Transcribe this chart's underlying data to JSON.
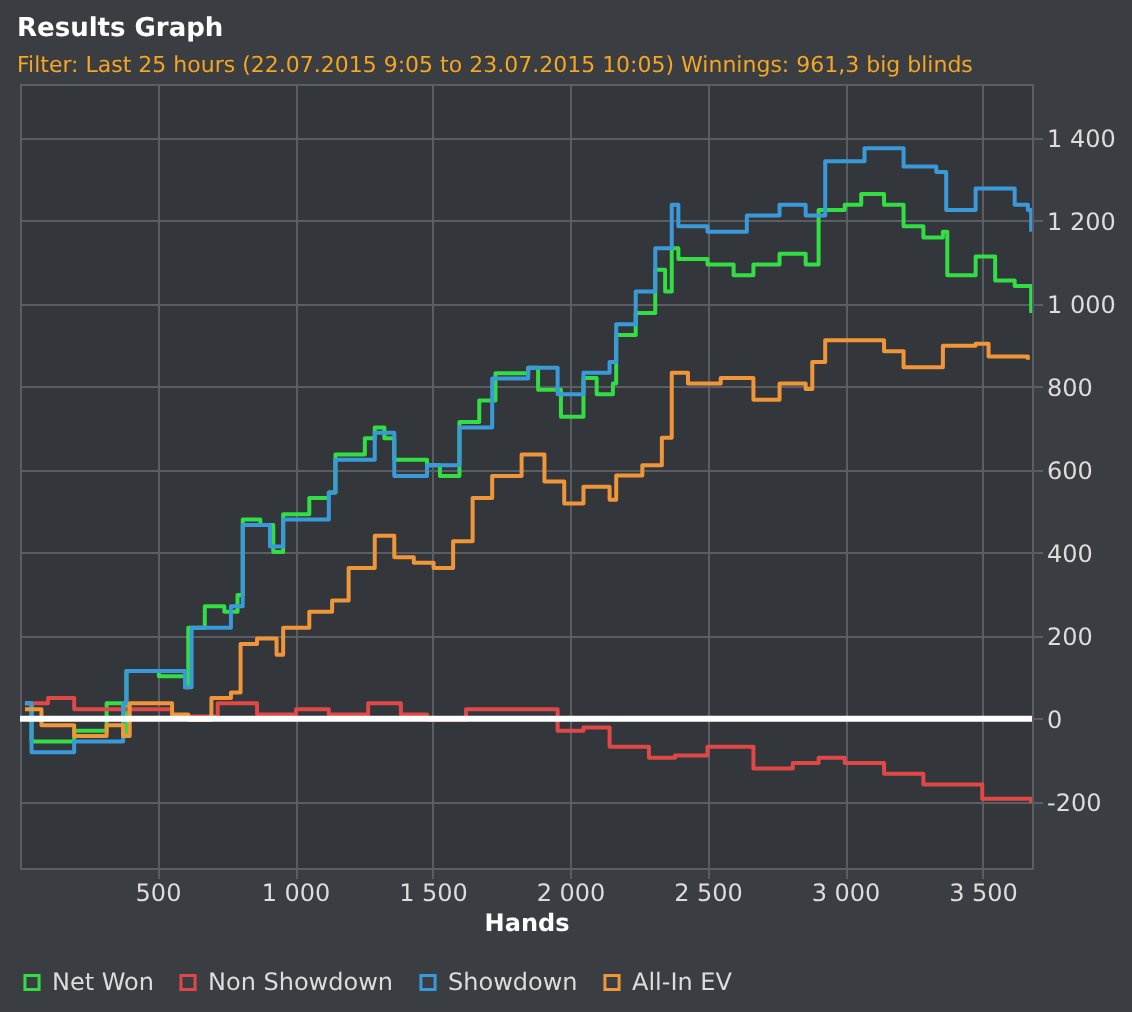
{
  "chart_data": {
    "type": "step",
    "title": "Results Graph",
    "subtitle": "Filter: Last 25 hours (22.07.2015 9:05 to 23.07.2015 10:05) Winnings: 961,3 big blinds",
    "xlabel": "Hands",
    "xlim": [
      0,
      3680
    ],
    "ylim": [
      -360,
      1530
    ],
    "xticks": [
      500,
      {
        "value": 1000,
        "label": "1 000"
      },
      {
        "value": 1500,
        "label": "1 500"
      },
      {
        "value": 2000,
        "label": "2 000"
      },
      {
        "value": 2500,
        "label": "2 500"
      },
      {
        "value": 3000,
        "label": "3 000"
      },
      {
        "value": 3500,
        "label": "3 500"
      }
    ],
    "yticks": [
      -200,
      0,
      200,
      400,
      600,
      800,
      {
        "value": 1000,
        "label": "1 000"
      },
      {
        "value": 1200,
        "label": "1 200"
      },
      {
        "value": 1400,
        "label": "1 400"
      }
    ],
    "grid": true,
    "legend": "bottom",
    "ref_lines": [
      {
        "axis": "y",
        "value": 0,
        "color": "#ffffff"
      }
    ],
    "series": [
      {
        "name": "Net Won",
        "color": "#33dd44",
        "x": [
          18,
          42,
          197,
          315,
          375,
          387,
          505,
          600,
          612,
          672,
          743,
          791,
          810,
          874,
          921,
          957,
          1052,
          1123,
          1147,
          1254,
          1290,
          1325,
          1361,
          1480,
          1527,
          1598,
          1670,
          1729,
          1812,
          1848,
          1884,
          1967,
          2049,
          2097,
          2156,
          2168,
          2239,
          2310,
          2346,
          2370,
          2394,
          2500,
          2595,
          2667,
          2762,
          2857,
          2904,
          2999,
          3059,
          3142,
          3213,
          3285,
          3356,
          3372,
          3427,
          3475,
          3546,
          3617,
          3665,
          3677
        ],
        "values": [
          37,
          -55,
          -29,
          37,
          -42,
          115,
          102,
          76,
          219,
          271,
          258,
          298,
          480,
          467,
          402,
          493,
          532,
          545,
          637,
          676,
          702,
          676,
          624,
          611,
          585,
          715,
          767,
          833,
          833,
          846,
          793,
          728,
          821,
          782,
          808,
          925,
          978,
          1082,
          1030,
          1134,
          1108,
          1095,
          1069,
          1095,
          1121,
          1095,
          1226,
          1239,
          1265,
          1239,
          1187,
          1160,
          1174,
          1069,
          1069,
          1114,
          1056,
          1043,
          1043,
          978
        ]
      },
      {
        "name": "Non Showdown",
        "color": "#e04848",
        "x": [
          18,
          102,
          197,
          375,
          553,
          719,
          862,
          1004,
          1123,
          1266,
          1385,
          1480,
          1622,
          1765,
          1860,
          1955,
          2049,
          2144,
          2287,
          2382,
          2500,
          2667,
          2810,
          2904,
          2999,
          3142,
          3285,
          3380,
          3499,
          3617,
          3677
        ],
        "values": [
          37,
          50,
          23,
          23,
          5,
          37,
          10,
          23,
          10,
          37,
          10,
          -3,
          23,
          23,
          23,
          -29,
          -21,
          -68,
          -94,
          -89,
          -68,
          -120,
          -107,
          -94,
          -107,
          -133,
          -159,
          -159,
          -193,
          -193,
          -204
        ]
      },
      {
        "name": "Showdown",
        "color": "#3a9ad9",
        "x": [
          18,
          42,
          197,
          315,
          375,
          387,
          600,
          624,
          767,
          810,
          909,
          957,
          1123,
          1147,
          1290,
          1361,
          1480,
          1598,
          1717,
          1848,
          1955,
          2049,
          2144,
          2168,
          2239,
          2310,
          2370,
          2394,
          2500,
          2643,
          2762,
          2857,
          2928,
          3071,
          3213,
          3332,
          3368,
          3475,
          3617,
          3665,
          3677
        ],
        "values": [
          37,
          -81,
          -55,
          -55,
          37,
          115,
          76,
          219,
          271,
          467,
          415,
          480,
          545,
          624,
          689,
          585,
          611,
          702,
          820,
          846,
          782,
          834,
          860,
          951,
          1030,
          1134,
          1239,
          1187,
          1174,
          1213,
          1239,
          1213,
          1344,
          1375,
          1331,
          1318,
          1226,
          1278,
          1239,
          1226,
          1174
        ]
      },
      {
        "name": "All-In EV",
        "color": "#f0963a",
        "x": [
          18,
          78,
          197,
          315,
          375,
          399,
          553,
          612,
          696,
          767,
          802,
          862,
          933,
          957,
          1052,
          1135,
          1195,
          1290,
          1337,
          1361,
          1432,
          1504,
          1575,
          1646,
          1717,
          1824,
          1907,
          1979,
          2049,
          2144,
          2168,
          2263,
          2334,
          2370,
          2429,
          2548,
          2667,
          2762,
          2857,
          2881,
          2928,
          3047,
          3142,
          3213,
          3285,
          3356,
          3475,
          3522,
          3665
        ],
        "values": [
          23,
          -16,
          -42,
          -16,
          -42,
          37,
          10,
          -3,
          50,
          63,
          180,
          193,
          154,
          219,
          258,
          285,
          363,
          441,
          441,
          389,
          376,
          363,
          428,
          532,
          585,
          637,
          572,
          519,
          559,
          528,
          586,
          611,
          677,
          834,
          808,
          821,
          769,
          808,
          795,
          860,
          912,
          912,
          886,
          847,
          847,
          899,
          904,
          873,
          865
        ]
      }
    ]
  }
}
